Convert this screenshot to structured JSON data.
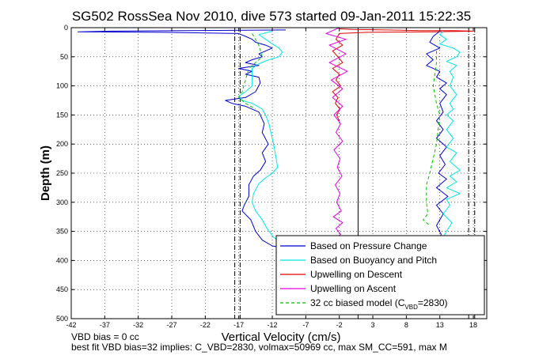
{
  "title": "SG502 RossSea Nov 2010, dive 573 started 09-Jan-2011 15:22:35",
  "footer": {
    "line1": "VBD bias = 0 cc",
    "line2": "best fit VBD bias=32 implies: C_VBD=2830, volmax=50969 cc, max SM_CC=591, max M"
  },
  "chart_data": {
    "type": "line",
    "xlabel": "Vertical Velocity (cm/s)",
    "ylabel": "Depth (m)",
    "xlim": [
      -42,
      20
    ],
    "ylim": [
      0,
      500
    ],
    "y_reversed": true,
    "grid": true,
    "legend_position": "bottom-right",
    "xticks": [
      -42,
      -37,
      -32,
      -27,
      -22,
      -17,
      -12,
      -7,
      -2,
      3,
      8,
      13,
      18
    ],
    "yticks": [
      0,
      50,
      100,
      150,
      200,
      250,
      300,
      350,
      400,
      450,
      500
    ],
    "vertical_lines": [
      {
        "x": -17.6,
        "style": "dashdot",
        "color": "#000000"
      },
      {
        "x": -16.8,
        "style": "dashdot",
        "color": "#000000"
      },
      {
        "x": 0.8,
        "style": "solid",
        "color": "#000000"
      },
      {
        "x": 17.3,
        "style": "dashdot",
        "color": "#000000"
      },
      {
        "x": 18.2,
        "style": "dashdot",
        "color": "#000000"
      }
    ],
    "series": [
      {
        "name": "Based on Pressure Change",
        "color": "#0000cc",
        "style": "solid",
        "points": [
          [
            -10,
            4
          ],
          [
            -25,
            5
          ],
          [
            -36,
            6
          ],
          [
            -41,
            7
          ],
          [
            -28,
            8
          ],
          [
            -17,
            10
          ],
          [
            -16,
            15
          ],
          [
            -15,
            20
          ],
          [
            -14.5,
            25
          ],
          [
            -13,
            30
          ],
          [
            -12,
            35
          ],
          [
            -13,
            40
          ],
          [
            -14,
            45
          ],
          [
            -13.5,
            50
          ],
          [
            -15,
            55
          ],
          [
            -16,
            60
          ],
          [
            -14,
            65
          ],
          [
            -17,
            70
          ],
          [
            -15,
            75
          ],
          [
            -16,
            80
          ],
          [
            -14,
            85
          ],
          [
            -13.8,
            95
          ],
          [
            -14.5,
            110
          ],
          [
            -16,
            120
          ],
          [
            -19,
            125
          ],
          [
            -18,
            130
          ],
          [
            -16,
            135
          ],
          [
            -14,
            145
          ],
          [
            -13.2,
            165
          ],
          [
            -13.5,
            180
          ],
          [
            -12.6,
            200
          ],
          [
            -13.5,
            215
          ],
          [
            -13,
            230
          ],
          [
            -13.8,
            245
          ],
          [
            -14.8,
            255
          ],
          [
            -15.5,
            270
          ],
          [
            -15.5,
            290
          ],
          [
            -16.2,
            305
          ],
          [
            -16.5,
            315
          ],
          [
            -15.2,
            330
          ],
          [
            -14.5,
            350
          ],
          [
            -13.5,
            365
          ],
          [
            -12,
            375
          ],
          [
            -10.5,
            378
          ]
        ]
      },
      {
        "name": "Based on Buoyancy and Pitch",
        "color": "#00e5e5",
        "style": "solid",
        "points": [
          [
            -12,
            6
          ],
          [
            -14,
            12
          ],
          [
            -13,
            20
          ],
          [
            -12,
            28
          ],
          [
            -11,
            35
          ],
          [
            -10.5,
            42
          ],
          [
            -11,
            50
          ],
          [
            -12.5,
            55
          ],
          [
            -14,
            62
          ],
          [
            -15,
            70
          ],
          [
            -15,
            80
          ],
          [
            -15,
            100
          ],
          [
            -16,
            110
          ],
          [
            -17,
            118
          ],
          [
            -16.5,
            125
          ],
          [
            -15,
            130
          ],
          [
            -13.5,
            140
          ],
          [
            -13,
            150
          ],
          [
            -12.5,
            165
          ],
          [
            -12.2,
            180
          ],
          [
            -11.8,
            200
          ],
          [
            -11.5,
            220
          ],
          [
            -11.2,
            240
          ],
          [
            -12,
            250
          ],
          [
            -13,
            258
          ],
          [
            -14,
            268
          ],
          [
            -14.8,
            285
          ],
          [
            -15,
            300
          ],
          [
            -14.5,
            315
          ],
          [
            -13.5,
            330
          ],
          [
            -12.8,
            345
          ],
          [
            -11.8,
            360
          ],
          [
            -10.5,
            372
          ],
          [
            -10,
            378
          ]
        ]
      },
      {
        "name": "Upwelling on Descent",
        "color": "#e00000",
        "style": "solid",
        "points": [
          [
            -2,
            2
          ],
          [
            0,
            3
          ],
          [
            5,
            4
          ],
          [
            10,
            5
          ],
          [
            15,
            5
          ],
          [
            18,
            6
          ],
          [
            12,
            7
          ],
          [
            2,
            8
          ],
          [
            -2,
            10
          ],
          [
            -2.5,
            20
          ],
          [
            -1.5,
            30
          ],
          [
            -3,
            40
          ],
          [
            -2.2,
            50
          ],
          [
            -1.5,
            60
          ],
          [
            -3,
            70
          ],
          [
            -2,
            80
          ],
          [
            -2.5,
            90
          ],
          [
            -1.8,
            100
          ],
          [
            -3,
            110
          ],
          [
            -2.2,
            120
          ],
          [
            -2.6,
            130
          ],
          [
            -1.9,
            140
          ],
          [
            -2.4,
            150
          ],
          [
            -2,
            160
          ]
        ]
      },
      {
        "name": "Upwelling on Ascent",
        "color": "#e000e0",
        "style": "solid",
        "points": [
          [
            -2,
            0
          ],
          [
            -4,
            10
          ],
          [
            -1,
            20
          ],
          [
            -3.5,
            30
          ],
          [
            -1,
            45
          ],
          [
            -3.5,
            60
          ],
          [
            -0.8,
            75
          ],
          [
            -3.2,
            90
          ],
          [
            -1.5,
            105
          ],
          [
            -3,
            120
          ],
          [
            -1.5,
            135
          ],
          [
            -2.8,
            150
          ],
          [
            -1.8,
            165
          ],
          [
            -2.5,
            180
          ],
          [
            -1.5,
            195
          ],
          [
            -2.8,
            210
          ],
          [
            -1.9,
            225
          ],
          [
            -2.3,
            240
          ],
          [
            -1.6,
            255
          ],
          [
            -2.6,
            270
          ],
          [
            -1.9,
            285
          ],
          [
            -2.4,
            300
          ],
          [
            -1.7,
            315
          ],
          [
            -2.9,
            325
          ],
          [
            -1.5,
            335
          ],
          [
            -2.5,
            345
          ],
          [
            -1.8,
            355
          ],
          [
            -2.3,
            360
          ]
        ]
      },
      {
        "name": "32 cc biased model (C_VBD=2830)",
        "color": "#00c000",
        "style": "dashed",
        "points": [
          [
            -15,
            10
          ],
          [
            -14,
            30
          ],
          [
            -13.5,
            50
          ],
          [
            -14.5,
            60
          ],
          [
            -15.5,
            70
          ],
          [
            -16,
            90
          ],
          [
            -16.5,
            110
          ],
          [
            -17,
            120
          ],
          [
            -16,
            130
          ],
          [
            -14.5,
            140
          ]
        ]
      },
      {
        "name": "Based on Pressure Change",
        "color": "#0000cc",
        "style": "solid",
        "points": [
          [
            13,
            6
          ],
          [
            12,
            15
          ],
          [
            11.5,
            25
          ],
          [
            13,
            35
          ],
          [
            11,
            45
          ],
          [
            12,
            55
          ],
          [
            11,
            65
          ],
          [
            13,
            75
          ],
          [
            12.5,
            85
          ],
          [
            14,
            95
          ],
          [
            13,
            105
          ],
          [
            14,
            115
          ],
          [
            13,
            130
          ],
          [
            13.5,
            145
          ],
          [
            12.5,
            160
          ],
          [
            13.5,
            175
          ],
          [
            12.5,
            190
          ],
          [
            14,
            205
          ],
          [
            13,
            220
          ],
          [
            13.8,
            235
          ],
          [
            12.8,
            250
          ],
          [
            14,
            260
          ],
          [
            12.5,
            275
          ],
          [
            14.2,
            290
          ],
          [
            12.5,
            305
          ],
          [
            13.5,
            320
          ],
          [
            12.5,
            340
          ],
          [
            13.2,
            355
          ],
          [
            13,
            362
          ]
        ]
      },
      {
        "name": "Based on Buoyancy and Pitch",
        "color": "#00e5e5",
        "style": "solid",
        "points": [
          [
            13.5,
            6
          ],
          [
            13,
            12
          ],
          [
            14,
            20
          ],
          [
            13,
            28
          ],
          [
            15,
            35
          ],
          [
            16,
            42
          ],
          [
            15.5,
            50
          ],
          [
            14,
            58
          ],
          [
            15.5,
            65
          ],
          [
            14.5,
            75
          ],
          [
            15,
            85
          ],
          [
            14.5,
            100
          ],
          [
            15.5,
            115
          ],
          [
            14.5,
            130
          ],
          [
            15,
            140
          ],
          [
            14,
            150
          ],
          [
            15,
            160
          ],
          [
            14,
            175
          ],
          [
            15,
            190
          ],
          [
            14,
            205
          ],
          [
            15.5,
            215
          ],
          [
            14.5,
            230
          ],
          [
            16,
            245
          ],
          [
            14.5,
            255
          ],
          [
            15.5,
            265
          ],
          [
            14,
            275
          ],
          [
            16,
            285
          ],
          [
            14,
            295
          ],
          [
            14.5,
            305
          ],
          [
            13.5,
            320
          ],
          [
            14.8,
            335
          ],
          [
            14,
            350
          ],
          [
            13.5,
            360
          ]
        ]
      },
      {
        "name": "32 cc biased model (C_VBD=2830)",
        "color": "#00c000",
        "style": "dashed",
        "points": [
          [
            12.5,
            40
          ],
          [
            12.5,
            60
          ],
          [
            12,
            100
          ],
          [
            12.5,
            130
          ],
          [
            13,
            150
          ],
          [
            12.5,
            200
          ],
          [
            11.5,
            250
          ],
          [
            11,
            270
          ],
          [
            11,
            300
          ],
          [
            11.2,
            320
          ],
          [
            10.5,
            330
          ],
          [
            11.5,
            340
          ]
        ]
      }
    ],
    "legend": [
      {
        "label_prefix": "Based on Pressure Change",
        "sub": "",
        "suffix": "",
        "color": "#0000cc",
        "style": "solid"
      },
      {
        "label_prefix": "Based on Buoyancy and Pitch",
        "sub": "",
        "suffix": "",
        "color": "#00e5e5",
        "style": "solid"
      },
      {
        "label_prefix": "Upwelling on Descent",
        "sub": "",
        "suffix": "",
        "color": "#e00000",
        "style": "solid"
      },
      {
        "label_prefix": "Upwelling on Ascent",
        "sub": "",
        "suffix": "",
        "color": "#e000e0",
        "style": "solid"
      },
      {
        "label_prefix": "32 cc biased model (C",
        "sub": "VBD",
        "suffix": "=2830)",
        "color": "#00c000",
        "style": "dashed"
      }
    ]
  }
}
